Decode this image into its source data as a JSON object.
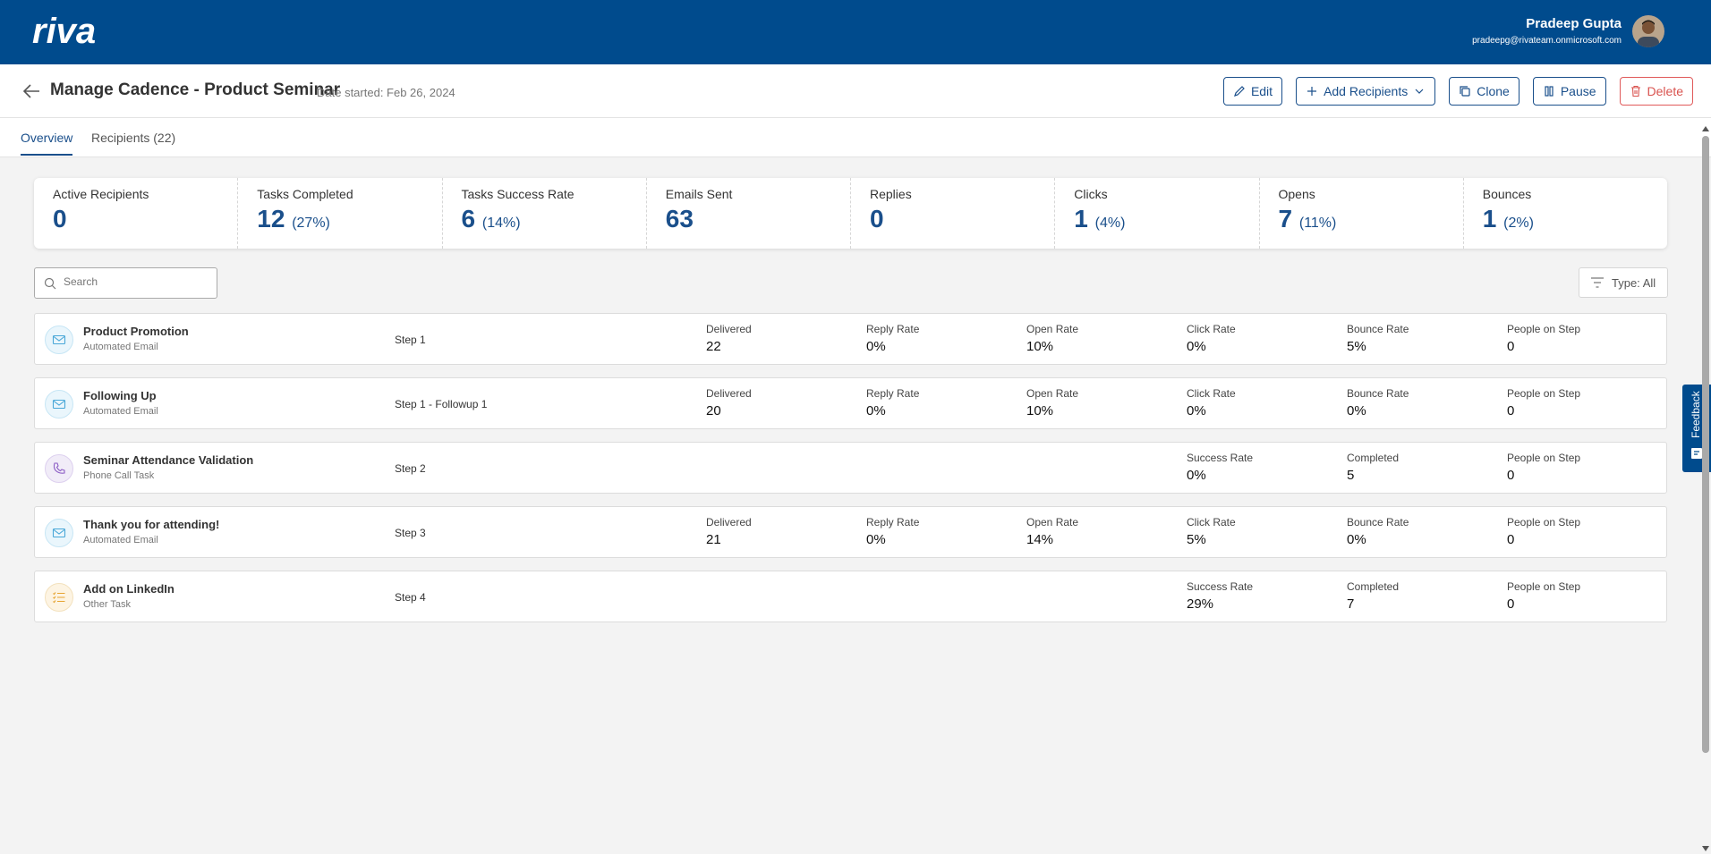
{
  "app": {
    "logo_text": "riva"
  },
  "user": {
    "name": "Pradeep Gupta",
    "email": "pradeepg@rivateam.onmicrosoft.com"
  },
  "header": {
    "title": "Manage Cadence - Product Seminar",
    "date_started": "Date started: Feb 26, 2024",
    "actions": {
      "edit": "Edit",
      "add_recipients": "Add Recipients",
      "clone": "Clone",
      "pause": "Pause",
      "delete": "Delete"
    }
  },
  "tabs": [
    {
      "label": "Overview"
    },
    {
      "label": "Recipients (22)"
    }
  ],
  "stats": [
    {
      "label": "Active Recipients",
      "value": "0",
      "pct": ""
    },
    {
      "label": "Tasks Completed",
      "value": "12",
      "pct": "(27%)"
    },
    {
      "label": "Tasks Success Rate",
      "value": "6",
      "pct": "(14%)"
    },
    {
      "label": "Emails Sent",
      "value": "63",
      "pct": ""
    },
    {
      "label": "Replies",
      "value": "0",
      "pct": ""
    },
    {
      "label": "Clicks",
      "value": "1",
      "pct": "(4%)"
    },
    {
      "label": "Opens",
      "value": "7",
      "pct": "(11%)"
    },
    {
      "label": "Bounces",
      "value": "1",
      "pct": "(2%)"
    }
  ],
  "search": {
    "placeholder": "Search"
  },
  "type_filter": {
    "label": "Type: All"
  },
  "steps": [
    {
      "name": "Product Promotion",
      "type": "Automated Email",
      "step": "Step 1",
      "m": [
        {
          "l": "Delivered",
          "v": "22"
        },
        {
          "l": "Reply Rate",
          "v": "0%"
        },
        {
          "l": "Open Rate",
          "v": "10%"
        },
        {
          "l": "Click Rate",
          "v": "0%"
        },
        {
          "l": "Bounce Rate",
          "v": "5%"
        },
        {
          "l": "People on Step",
          "v": "0"
        }
      ]
    },
    {
      "name": "Following Up",
      "type": "Automated Email",
      "step": "Step 1 - Followup 1",
      "m": [
        {
          "l": "Delivered",
          "v": "20"
        },
        {
          "l": "Reply Rate",
          "v": "0%"
        },
        {
          "l": "Open Rate",
          "v": "10%"
        },
        {
          "l": "Click Rate",
          "v": "0%"
        },
        {
          "l": "Bounce Rate",
          "v": "0%"
        },
        {
          "l": "People on Step",
          "v": "0"
        }
      ]
    },
    {
      "name": "Seminar Attendance Validation",
      "type": "Phone Call Task",
      "step": "Step 2",
      "m": [
        {
          "l": "Success Rate",
          "v": "0%"
        },
        {
          "l": "Completed",
          "v": "5"
        },
        {
          "l": "People on Step",
          "v": "0"
        }
      ]
    },
    {
      "name": "Thank you for attending!",
      "type": "Automated Email",
      "step": "Step 3",
      "m": [
        {
          "l": "Delivered",
          "v": "21"
        },
        {
          "l": "Reply Rate",
          "v": "0%"
        },
        {
          "l": "Open Rate",
          "v": "14%"
        },
        {
          "l": "Click Rate",
          "v": "5%"
        },
        {
          "l": "Bounce Rate",
          "v": "0%"
        },
        {
          "l": "People on Step",
          "v": "0"
        }
      ]
    },
    {
      "name": "Add on LinkedIn",
      "type": "Other Task",
      "step": "Step 4",
      "m": [
        {
          "l": "Success Rate",
          "v": "29%"
        },
        {
          "l": "Completed",
          "v": "7"
        },
        {
          "l": "People on Step",
          "v": "0"
        }
      ]
    }
  ],
  "feedback": {
    "label": "Feedback"
  },
  "icons": {
    "email": "envelope-icon",
    "phone": "phone-icon",
    "task": "checklist-icon"
  },
  "colors": {
    "brand": "#004b8d",
    "accent": "#1a4f8b",
    "danger": "#d9534f"
  }
}
